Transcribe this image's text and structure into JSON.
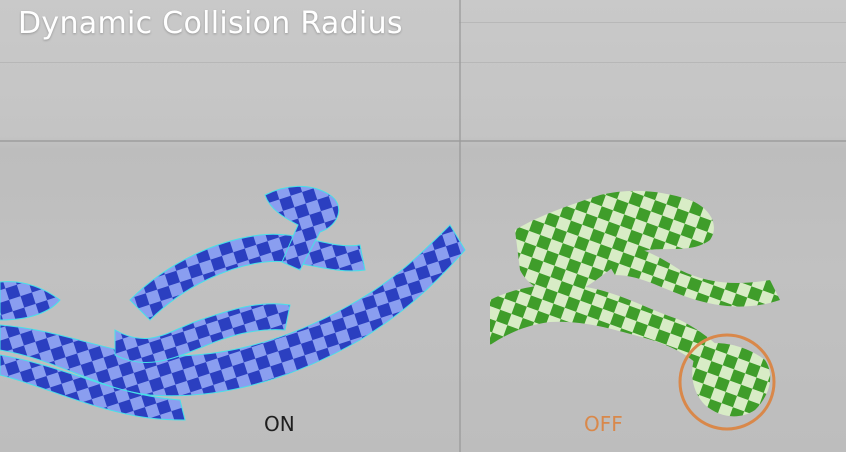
{
  "video": {
    "title": "Dynamic Collision Radius",
    "left_label": "ON",
    "right_label": "OFF"
  },
  "colors": {
    "background": "#c4c4c4",
    "title_text": "#ffffff",
    "on_cloth_dark": "#2b3fc0",
    "on_cloth_light": "#8a9ef0",
    "on_wireframe": "#48e0e8",
    "off_cloth_dark": "#3f9d2a",
    "off_cloth_light": "#d8ecc6",
    "off_label": "#d9884a",
    "highlight_circle": "#d9884a"
  }
}
